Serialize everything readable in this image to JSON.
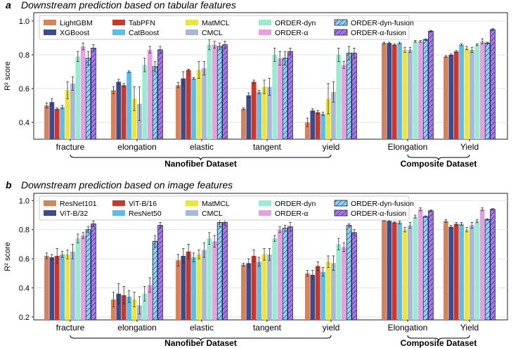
{
  "chart_data": [
    {
      "type": "bar",
      "panel_letter": "a",
      "title": "Downstream prediction based on tabular features",
      "ylabel": "R² score",
      "ylim": [
        0.3,
        1.05
      ],
      "yticks": [
        0.4,
        0.6,
        0.8,
        1.0
      ],
      "ytick_labels": [
        "0.4",
        "0.6",
        "0.8",
        "1.0"
      ],
      "grid": true,
      "legend_position": "top-left",
      "categories": [
        "fracture",
        "elongation",
        "elastic",
        "tangent",
        "yield",
        "Elongation",
        "Yield"
      ],
      "group_labels": [
        {
          "label": "Nanofiber Dataset",
          "from": 0,
          "to": 4
        },
        {
          "label": "Composite Dataset",
          "from": 5,
          "to": 6
        }
      ],
      "series": [
        {
          "name": "LightGBM",
          "color": "#d9815a",
          "hatch": false,
          "values": [
            0.5,
            0.59,
            0.62,
            0.48,
            0.4,
            0.87,
            0.79
          ],
          "errors": [
            0.015,
            0.02,
            0.015,
            0.005,
            0.025,
            0.005,
            0.005
          ]
        },
        {
          "name": "XGBoost",
          "color": "#3d4a8c",
          "hatch": false,
          "values": [
            0.52,
            0.64,
            0.66,
            0.56,
            0.47,
            0.87,
            0.8
          ],
          "errors": [
            0.02,
            0.015,
            0.04,
            0.015,
            0.01,
            0.005,
            0.005
          ]
        },
        {
          "name": "TabPFN",
          "color": "#c9382a",
          "hatch": false,
          "values": [
            0.48,
            0.62,
            0.71,
            0.64,
            0.46,
            0.86,
            0.82
          ],
          "errors": [
            0.005,
            0.01,
            0.005,
            0.01,
            0.01,
            0.005,
            0.005
          ]
        },
        {
          "name": "CatBoost",
          "color": "#5cbde8",
          "hatch": false,
          "values": [
            0.49,
            0.7,
            0.66,
            0.58,
            0.45,
            0.87,
            0.86
          ],
          "errors": [
            0.01,
            0.005,
            0.005,
            0.01,
            0.01,
            0.005,
            0.005
          ]
        },
        {
          "name": "MatMCL",
          "color": "#ede43c",
          "hatch": false,
          "values": [
            0.59,
            0.54,
            0.71,
            0.61,
            0.54,
            0.83,
            0.84
          ],
          "errors": [
            0.05,
            0.07,
            0.05,
            0.04,
            0.09,
            0.015,
            0.01
          ]
        },
        {
          "name": "CMCL",
          "color": "#a9b8d9",
          "hatch": false,
          "values": [
            0.63,
            0.51,
            0.72,
            0.61,
            0.58,
            0.83,
            0.83
          ],
          "errors": [
            0.04,
            0.1,
            0.04,
            0.05,
            0.06,
            0.015,
            0.015
          ]
        },
        {
          "name": "ORDER-dyn",
          "color": "#9aead2",
          "hatch": false,
          "values": [
            0.79,
            0.74,
            0.86,
            0.8,
            0.8,
            0.88,
            0.86
          ],
          "errors": [
            0.03,
            0.04,
            0.03,
            0.04,
            0.04,
            0.005,
            0.005
          ]
        },
        {
          "name": "ORDER-α",
          "color": "#e6a0e0",
          "hatch": false,
          "values": [
            0.85,
            0.83,
            0.86,
            0.78,
            0.74,
            0.88,
            0.88
          ],
          "errors": [
            0.02,
            0.02,
            0.02,
            0.04,
            0.02,
            0.005,
            0.015
          ]
        },
        {
          "name": "ORDER-dyn-fusion",
          "color": "#8fd3f0",
          "hatch": true,
          "values": [
            0.78,
            0.73,
            0.85,
            0.78,
            0.81,
            0.89,
            0.87
          ],
          "errors": [
            0.04,
            0.03,
            0.02,
            0.04,
            0.04,
            0.005,
            0.005
          ]
        },
        {
          "name": "ORDER-α-fusion",
          "color": "#a776e8",
          "hatch": true,
          "values": [
            0.84,
            0.83,
            0.86,
            0.82,
            0.81,
            0.94,
            0.95
          ],
          "errors": [
            0.02,
            0.02,
            0.02,
            0.02,
            0.03,
            0.005,
            0.005
          ]
        }
      ]
    },
    {
      "type": "bar",
      "panel_letter": "b",
      "title": "Downstream prediction based on image features",
      "ylabel": "R² score",
      "ylim": [
        0.18,
        1.05
      ],
      "yticks": [
        0.2,
        0.4,
        0.6,
        0.8,
        1.0
      ],
      "ytick_labels": [
        "0.2",
        "0.4",
        "0.6",
        "0.8",
        "1.0"
      ],
      "grid": true,
      "legend_position": "top-left",
      "categories": [
        "fracture",
        "elongation",
        "elastic",
        "tangent",
        "yield",
        "Elongation",
        "Yield"
      ],
      "group_labels": [
        {
          "label": "Nanofiber Dataset",
          "from": 0,
          "to": 4
        },
        {
          "label": "Composite Dataset",
          "from": 5,
          "to": 6
        }
      ],
      "series": [
        {
          "name": "ResNet101",
          "color": "#d9815a",
          "hatch": false,
          "values": [
            0.62,
            0.32,
            0.59,
            0.56,
            0.5,
            0.87,
            0.86
          ],
          "errors": [
            0.02,
            0.05,
            0.04,
            0.01,
            0.02,
            0.01,
            0.01
          ]
        },
        {
          "name": "ViT-B/32",
          "color": "#3d4a8c",
          "hatch": false,
          "values": [
            0.61,
            0.36,
            0.62,
            0.57,
            0.49,
            0.86,
            0.82
          ],
          "errors": [
            0.02,
            0.07,
            0.05,
            0.03,
            0.03,
            0.005,
            0.01
          ]
        },
        {
          "name": "ViT-B/16",
          "color": "#c9382a",
          "hatch": false,
          "values": [
            0.62,
            0.35,
            0.65,
            0.62,
            0.55,
            0.85,
            0.84
          ],
          "errors": [
            0.05,
            0.06,
            0.05,
            0.04,
            0.03,
            0.005,
            0.01
          ]
        },
        {
          "name": "ResNet50",
          "color": "#5cbde8",
          "hatch": false,
          "values": [
            0.63,
            0.34,
            0.61,
            0.58,
            0.51,
            0.85,
            0.84
          ],
          "errors": [
            0.02,
            0.04,
            0.03,
            0.03,
            0.03,
            0.01,
            0.01
          ]
        },
        {
          "name": "MatMCL",
          "color": "#ede43c",
          "hatch": false,
          "values": [
            0.63,
            0.32,
            0.63,
            0.63,
            0.58,
            0.8,
            0.8
          ],
          "errors": [
            0.03,
            0.05,
            0.03,
            0.04,
            0.04,
            0.015,
            0.015
          ]
        },
        {
          "name": "CMCL",
          "color": "#a9b8d9",
          "hatch": false,
          "values": [
            0.65,
            0.28,
            0.66,
            0.63,
            0.57,
            0.83,
            0.83
          ],
          "errors": [
            0.05,
            0.06,
            0.05,
            0.04,
            0.05,
            0.02,
            0.02
          ]
        },
        {
          "name": "ORDER-dyn",
          "color": "#9aead2",
          "hatch": false,
          "values": [
            0.74,
            0.36,
            0.74,
            0.74,
            0.7,
            0.89,
            0.86
          ],
          "errors": [
            0.03,
            0.05,
            0.04,
            0.02,
            0.04,
            0.01,
            0.01
          ]
        },
        {
          "name": "ORDER-α",
          "color": "#e6a0e0",
          "hatch": false,
          "values": [
            0.76,
            0.42,
            0.72,
            0.8,
            0.68,
            0.94,
            0.94
          ],
          "errors": [
            0.02,
            0.05,
            0.04,
            0.02,
            0.03,
            0.01,
            0.01
          ]
        },
        {
          "name": "ORDER-dyn-fusion",
          "color": "#8fd3f0",
          "hatch": true,
          "values": [
            0.8,
            0.72,
            0.85,
            0.81,
            0.83,
            0.89,
            0.87
          ],
          "errors": [
            0.02,
            0.04,
            0.03,
            0.02,
            0.01,
            0.005,
            0.005
          ]
        },
        {
          "name": "ORDER-α-fusion",
          "color": "#a776e8",
          "hatch": true,
          "values": [
            0.84,
            0.83,
            0.85,
            0.82,
            0.78,
            0.93,
            0.94
          ],
          "errors": [
            0.02,
            0.02,
            0.02,
            0.03,
            0.02,
            0.005,
            0.005
          ]
        }
      ]
    }
  ]
}
